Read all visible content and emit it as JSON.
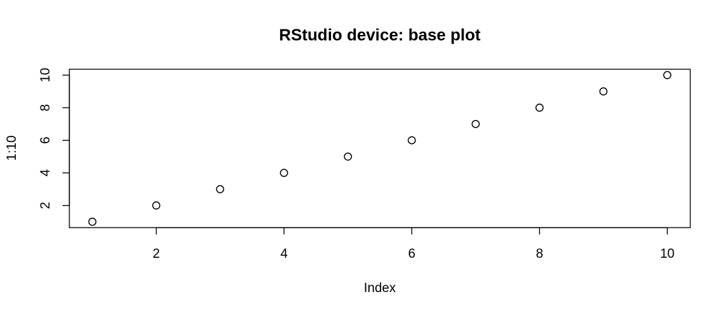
{
  "chart_data": {
    "type": "scatter",
    "title": "RStudio device: base plot",
    "xlabel": "Index",
    "ylabel": "1:10",
    "x": [
      1,
      2,
      3,
      4,
      5,
      6,
      7,
      8,
      9,
      10
    ],
    "y": [
      1,
      2,
      3,
      4,
      5,
      6,
      7,
      8,
      9,
      10
    ],
    "xticks": [
      "2",
      "4",
      "6",
      "8",
      "10"
    ],
    "yticks": [
      "2",
      "4",
      "6",
      "8",
      "10"
    ],
    "xlim": [
      0.64,
      10.36
    ],
    "ylim": [
      0.64,
      10.36
    ],
    "marker": "open-circle",
    "grid": false,
    "colors": {
      "points": "#000000",
      "axes": "#000000",
      "background": "#ffffff"
    }
  }
}
